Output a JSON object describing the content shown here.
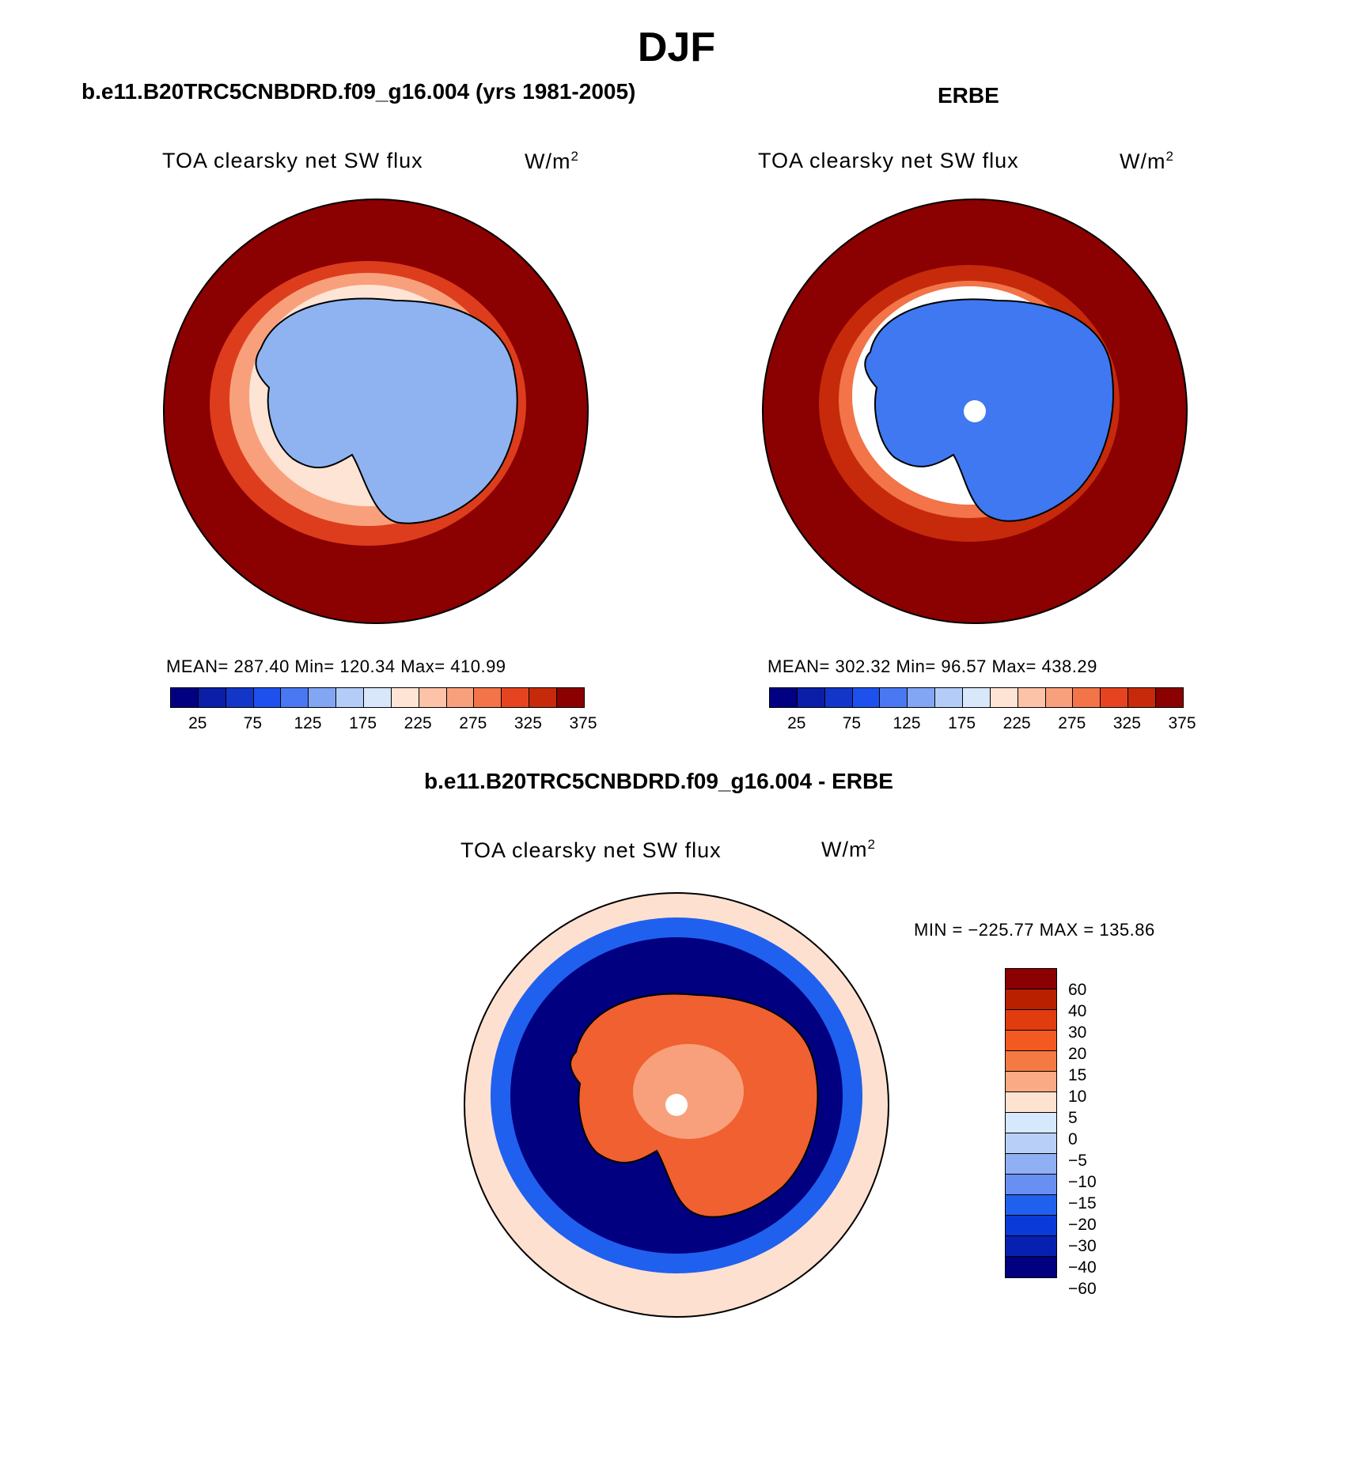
{
  "figure": {
    "season": "DJF",
    "model_title": "b.e11.B20TRC5CNBDRD.f09_g16.004 (yrs 1981-2005)",
    "obs_title": "ERBE",
    "diff_title": "b.e11.B20TRC5CNBDRD.f09_g16.004 - ERBE"
  },
  "panels": [
    {
      "id": "model",
      "variable": "TOA clearsky net SW flux",
      "units_base": "W/m",
      "units_exp": "2",
      "stats": "MEAN= 287.40   Min= 120.34   Max= 410.99",
      "colors": {
        "ocean": "#8b0000",
        "antarctica": "#8fb3f0"
      }
    },
    {
      "id": "obs",
      "variable": "TOA clearsky net SW flux",
      "units_base": "W/m",
      "units_exp": "2",
      "stats": "MEAN= 302.32   Min=   96.57   Max= 438.29",
      "colors": {
        "ocean": "#8b0000",
        "antarctica": "#3f78f0"
      }
    },
    {
      "id": "diff",
      "variable": "TOA clearsky net SW flux",
      "units_base": "W/m",
      "units_exp": "2",
      "stats": "MIN = −225.77 MAX = 135.86",
      "colors": {
        "ocean": "#fde0d0",
        "antarctica": "#f06030"
      }
    }
  ],
  "abs_colorbar": {
    "colors": [
      "#000080",
      "#0a1ea8",
      "#1436c8",
      "#1e50ee",
      "#4a78f2",
      "#82a6f4",
      "#b4ccf8",
      "#d8e8fa",
      "#fde4d4",
      "#fcc3a8",
      "#f8a07c",
      "#f27448",
      "#e64420",
      "#c62a0a",
      "#8b0000"
    ],
    "ticks": [
      "25",
      "75",
      "125",
      "175",
      "225",
      "275",
      "325",
      "375"
    ]
  },
  "diff_colorbar": {
    "colors": [
      "#8b0000",
      "#b82000",
      "#e03c10",
      "#f25a22",
      "#f57a42",
      "#faaa84",
      "#fde3d0",
      "#d6e8fc",
      "#b8d0f8",
      "#90b0f4",
      "#6890f2",
      "#2060ee",
      "#0a3ad8",
      "#0820b0",
      "#000080"
    ],
    "ticks": [
      "60",
      "40",
      "30",
      "20",
      "15",
      "10",
      "5",
      "0",
      "−5",
      "−10",
      "−15",
      "−20",
      "−30",
      "−40",
      "−60"
    ]
  }
}
